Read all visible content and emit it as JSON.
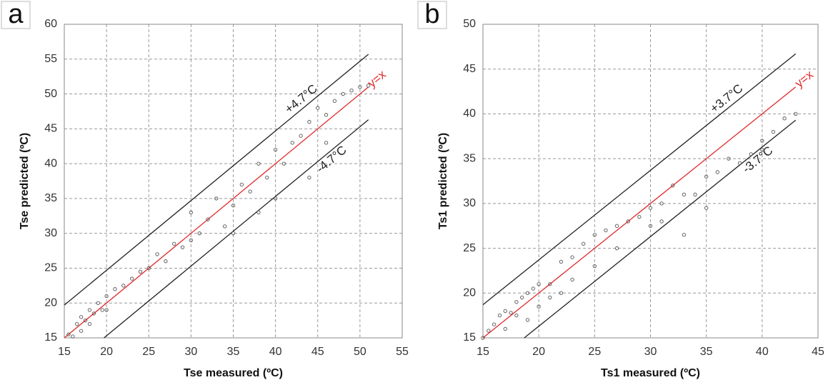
{
  "chart_data": [
    {
      "type": "scatter",
      "panel": "a",
      "xlabel": "Tse measured (ºC)",
      "ylabel": "Tse predicted (ºC)",
      "xlim": [
        15,
        55
      ],
      "ylim": [
        15,
        60
      ],
      "xticks": [
        15,
        20,
        25,
        30,
        35,
        40,
        45,
        50,
        55
      ],
      "yticks": [
        15,
        20,
        25,
        30,
        35,
        40,
        45,
        50,
        55,
        60
      ],
      "grid": true,
      "marker_color": "#555555",
      "reference_lines": [
        {
          "label": "y=x",
          "offset": 0,
          "color": "#e02828"
        },
        {
          "label": "+4.7°C",
          "offset": 4.7,
          "color": "#222222"
        },
        {
          "label": "-4.7°C",
          "offset": -4.7,
          "color": "#222222"
        }
      ],
      "x": [
        15.5,
        16,
        16.5,
        17,
        17,
        17.5,
        18,
        18,
        18.5,
        19,
        19.5,
        20,
        20,
        21,
        22,
        23,
        24,
        25,
        26,
        27,
        28,
        29,
        30,
        30,
        31,
        32,
        33,
        34,
        35,
        35,
        36,
        37,
        38,
        38,
        39,
        40,
        40,
        41,
        42,
        43,
        44,
        44,
        45,
        46,
        46,
        47,
        48,
        49,
        50,
        51
      ],
      "values": [
        15.5,
        15.2,
        17,
        16,
        18,
        17.5,
        19,
        17,
        18.5,
        20,
        19,
        21,
        19,
        22,
        22.5,
        23.5,
        24.5,
        25,
        27,
        26,
        28.5,
        28,
        33,
        29,
        30,
        32,
        35,
        31,
        34,
        30,
        37,
        36,
        40,
        33,
        38,
        42,
        35,
        40,
        43,
        44,
        46,
        38,
        48,
        47,
        43,
        49,
        50,
        50.5,
        51,
        51.2
      ]
    },
    {
      "type": "scatter",
      "panel": "b",
      "xlabel": "Ts1 measured (ºC)",
      "ylabel": "Ts1 predicted (ºC)",
      "xlim": [
        15,
        45
      ],
      "ylim": [
        15,
        50
      ],
      "xticks": [
        15,
        20,
        25,
        30,
        35,
        40,
        45
      ],
      "yticks": [
        15,
        20,
        25,
        30,
        35,
        40,
        45,
        50
      ],
      "grid": true,
      "marker_color": "#555555",
      "reference_lines": [
        {
          "label": "y=x",
          "offset": 0,
          "color": "#e02828"
        },
        {
          "label": "+3.7°C",
          "offset": 3.7,
          "color": "#222222"
        },
        {
          "label": "-3.7°C",
          "offset": -3.7,
          "color": "#222222"
        }
      ],
      "x": [
        15,
        15.5,
        16,
        16.5,
        17,
        17,
        17.5,
        18,
        18,
        18.5,
        19,
        19,
        19.5,
        20,
        20,
        21,
        21,
        22,
        22,
        23,
        23,
        24,
        25,
        25,
        26,
        27,
        27,
        28,
        29,
        30,
        30,
        31,
        31,
        32,
        33,
        33,
        34,
        35,
        35,
        36,
        37,
        38,
        39,
        40,
        40,
        41,
        42,
        43
      ],
      "values": [
        15,
        15.8,
        16.5,
        17.5,
        16,
        18,
        17.8,
        19,
        17.5,
        19.5,
        20,
        17,
        20.5,
        21,
        18.5,
        21,
        19.5,
        23.5,
        20,
        24,
        21.5,
        25.5,
        26.5,
        23,
        27,
        27.5,
        25,
        28,
        28.5,
        29.5,
        27.5,
        30,
        28,
        32,
        31,
        26.5,
        31,
        33,
        29.5,
        33.5,
        35,
        34.5,
        35.5,
        37,
        36,
        38,
        39.5,
        40
      ]
    }
  ]
}
